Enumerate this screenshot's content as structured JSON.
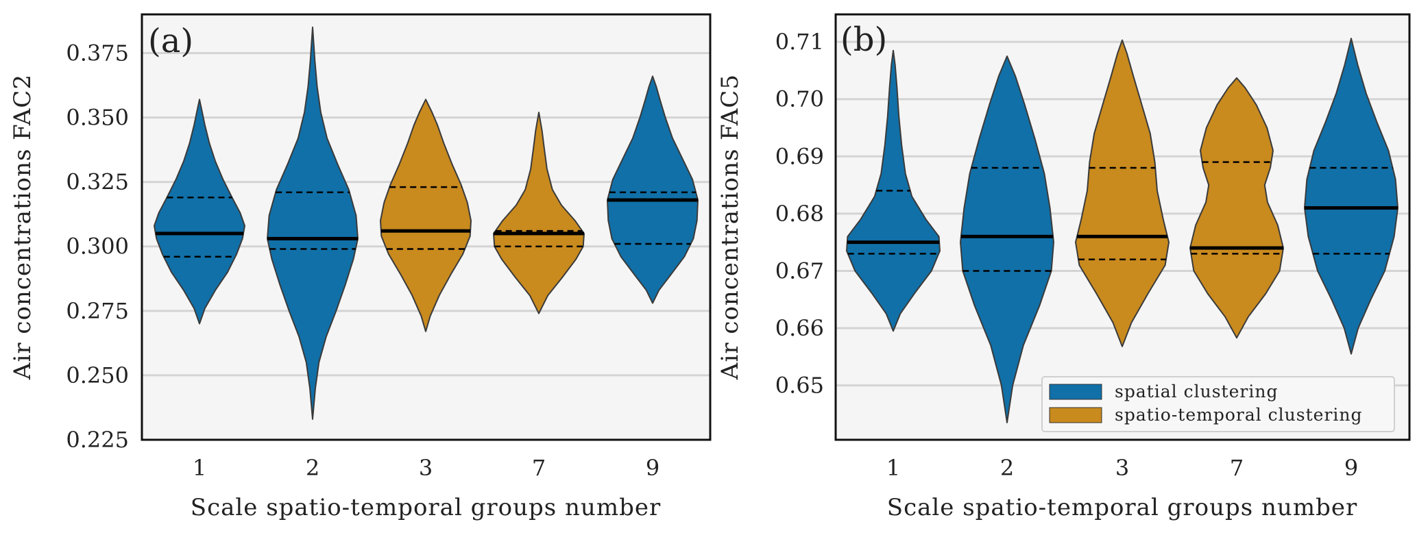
{
  "colors": {
    "spatial": "#1170a8",
    "spatio_temporal": "#c98a1e",
    "panel_bg": "#f5f5f5",
    "grid": "#d4d4d4",
    "outline": "#3a3a3a"
  },
  "legend": {
    "spatial_label": "spatial clustering",
    "spatio_temporal_label": "spatio-temporal clustering"
  },
  "chart_data": [
    {
      "type": "violin",
      "panel_label": "(a)",
      "xlabel": "Scale spatio-temporal groups number",
      "ylabel": "Air concentrations FAC2",
      "ylim": [
        0.225,
        0.39
      ],
      "yticks": [
        0.225,
        0.25,
        0.275,
        0.3,
        0.325,
        0.35,
        0.375
      ],
      "ytick_labels": [
        "0.225",
        "0.250",
        "0.275",
        "0.300",
        "0.325",
        "0.350",
        "0.375"
      ],
      "grid": true,
      "categories": [
        "1",
        "2",
        "3",
        "7",
        "9"
      ],
      "series_type": [
        "spatial",
        "spatial",
        "spatio_temporal",
        "spatio_temporal",
        "spatial"
      ],
      "violins": [
        {
          "category": "1",
          "min": 0.27,
          "max": 0.357,
          "q1": 0.296,
          "median": 0.305,
          "q3": 0.319,
          "profile": [
            [
              0.27,
              0.0
            ],
            [
              0.276,
              0.12
            ],
            [
              0.283,
              0.35
            ],
            [
              0.29,
              0.62
            ],
            [
              0.297,
              0.82
            ],
            [
              0.303,
              0.95
            ],
            [
              0.308,
              1.0
            ],
            [
              0.313,
              0.9
            ],
            [
              0.319,
              0.72
            ],
            [
              0.326,
              0.52
            ],
            [
              0.333,
              0.35
            ],
            [
              0.34,
              0.22
            ],
            [
              0.347,
              0.12
            ],
            [
              0.352,
              0.06
            ],
            [
              0.357,
              0.0
            ]
          ]
        },
        {
          "category": "2",
          "min": 0.233,
          "max": 0.385,
          "q1": 0.299,
          "median": 0.303,
          "q3": 0.321,
          "profile": [
            [
              0.233,
              0.0
            ],
            [
              0.245,
              0.06
            ],
            [
              0.255,
              0.14
            ],
            [
              0.265,
              0.3
            ],
            [
              0.275,
              0.52
            ],
            [
              0.285,
              0.72
            ],
            [
              0.295,
              0.9
            ],
            [
              0.303,
              1.0
            ],
            [
              0.312,
              0.96
            ],
            [
              0.322,
              0.8
            ],
            [
              0.332,
              0.55
            ],
            [
              0.342,
              0.32
            ],
            [
              0.352,
              0.18
            ],
            [
              0.362,
              0.1
            ],
            [
              0.372,
              0.05
            ],
            [
              0.385,
              0.0
            ]
          ]
        },
        {
          "category": "3",
          "min": 0.267,
          "max": 0.357,
          "q1": 0.299,
          "median": 0.306,
          "q3": 0.323,
          "profile": [
            [
              0.267,
              0.0
            ],
            [
              0.273,
              0.1
            ],
            [
              0.281,
              0.3
            ],
            [
              0.289,
              0.55
            ],
            [
              0.297,
              0.82
            ],
            [
              0.304,
              0.98
            ],
            [
              0.31,
              1.0
            ],
            [
              0.317,
              0.92
            ],
            [
              0.324,
              0.78
            ],
            [
              0.332,
              0.58
            ],
            [
              0.34,
              0.4
            ],
            [
              0.347,
              0.26
            ],
            [
              0.352,
              0.14
            ],
            [
              0.357,
              0.0
            ]
          ]
        },
        {
          "category": "7",
          "min": 0.274,
          "max": 0.352,
          "q1": 0.3,
          "median": 0.305,
          "q3": 0.306,
          "profile": [
            [
              0.274,
              0.0
            ],
            [
              0.281,
              0.2
            ],
            [
              0.288,
              0.52
            ],
            [
              0.295,
              0.82
            ],
            [
              0.3,
              0.98
            ],
            [
              0.305,
              1.0
            ],
            [
              0.31,
              0.8
            ],
            [
              0.316,
              0.5
            ],
            [
              0.322,
              0.3
            ],
            [
              0.33,
              0.18
            ],
            [
              0.338,
              0.12
            ],
            [
              0.345,
              0.07
            ],
            [
              0.352,
              0.0
            ]
          ]
        },
        {
          "category": "9",
          "min": 0.278,
          "max": 0.366,
          "q1": 0.301,
          "median": 0.318,
          "q3": 0.321,
          "profile": [
            [
              0.278,
              0.0
            ],
            [
              0.283,
              0.14
            ],
            [
              0.289,
              0.4
            ],
            [
              0.296,
              0.7
            ],
            [
              0.303,
              0.9
            ],
            [
              0.31,
              0.98
            ],
            [
              0.318,
              1.0
            ],
            [
              0.326,
              0.88
            ],
            [
              0.334,
              0.66
            ],
            [
              0.342,
              0.44
            ],
            [
              0.35,
              0.28
            ],
            [
              0.357,
              0.16
            ],
            [
              0.362,
              0.08
            ],
            [
              0.366,
              0.0
            ]
          ]
        }
      ]
    },
    {
      "type": "violin",
      "panel_label": "(b)",
      "xlabel": "Scale spatio-temporal groups number",
      "ylabel": "Air concentrations FAC5",
      "ylim": [
        0.6405,
        0.7148
      ],
      "yticks": [
        0.65,
        0.66,
        0.67,
        0.68,
        0.69,
        0.7,
        0.71
      ],
      "ytick_labels": [
        "0.65",
        "0.66",
        "0.67",
        "0.68",
        "0.69",
        "0.70",
        "0.71"
      ],
      "grid": true,
      "categories": [
        "1",
        "2",
        "3",
        "7",
        "9"
      ],
      "series_type": [
        "spatial",
        "spatial",
        "spatio_temporal",
        "spatio_temporal",
        "spatial"
      ],
      "legend_position": "bottom-right",
      "violins": [
        {
          "category": "1",
          "min": 0.6595,
          "max": 0.7085,
          "q1": 0.673,
          "median": 0.675,
          "q3": 0.684,
          "profile": [
            [
              0.6595,
              0.0
            ],
            [
              0.6625,
              0.15
            ],
            [
              0.666,
              0.45
            ],
            [
              0.67,
              0.82
            ],
            [
              0.6735,
              1.0
            ],
            [
              0.676,
              0.98
            ],
            [
              0.679,
              0.7
            ],
            [
              0.683,
              0.4
            ],
            [
              0.687,
              0.26
            ],
            [
              0.692,
              0.18
            ],
            [
              0.697,
              0.12
            ],
            [
              0.702,
              0.08
            ],
            [
              0.706,
              0.04
            ],
            [
              0.7085,
              0.0
            ]
          ]
        },
        {
          "category": "2",
          "min": 0.6435,
          "max": 0.7075,
          "q1": 0.67,
          "median": 0.676,
          "q3": 0.688,
          "profile": [
            [
              0.6435,
              0.0
            ],
            [
              0.65,
              0.12
            ],
            [
              0.657,
              0.35
            ],
            [
              0.664,
              0.7
            ],
            [
              0.67,
              0.95
            ],
            [
              0.675,
              1.0
            ],
            [
              0.681,
              0.92
            ],
            [
              0.687,
              0.8
            ],
            [
              0.693,
              0.6
            ],
            [
              0.699,
              0.38
            ],
            [
              0.704,
              0.18
            ],
            [
              0.7075,
              0.0
            ]
          ]
        },
        {
          "category": "3",
          "min": 0.6568,
          "max": 0.7103,
          "q1": 0.672,
          "median": 0.676,
          "q3": 0.688,
          "profile": [
            [
              0.6568,
              0.0
            ],
            [
              0.661,
              0.2
            ],
            [
              0.666,
              0.55
            ],
            [
              0.671,
              0.92
            ],
            [
              0.675,
              1.0
            ],
            [
              0.679,
              0.88
            ],
            [
              0.684,
              0.75
            ],
            [
              0.689,
              0.7
            ],
            [
              0.694,
              0.6
            ],
            [
              0.699,
              0.42
            ],
            [
              0.704,
              0.24
            ],
            [
              0.708,
              0.1
            ],
            [
              0.7103,
              0.0
            ]
          ]
        },
        {
          "category": "7",
          "min": 0.6583,
          "max": 0.7037,
          "q1": 0.673,
          "median": 0.674,
          "q3": 0.689,
          "profile": [
            [
              0.6583,
              0.0
            ],
            [
              0.662,
              0.25
            ],
            [
              0.666,
              0.62
            ],
            [
              0.67,
              0.92
            ],
            [
              0.674,
              1.0
            ],
            [
              0.678,
              0.88
            ],
            [
              0.682,
              0.66
            ],
            [
              0.685,
              0.6
            ],
            [
              0.688,
              0.72
            ],
            [
              0.691,
              0.78
            ],
            [
              0.695,
              0.65
            ],
            [
              0.699,
              0.42
            ],
            [
              0.702,
              0.18
            ],
            [
              0.7037,
              0.0
            ]
          ]
        },
        {
          "category": "9",
          "min": 0.6555,
          "max": 0.7106,
          "q1": 0.673,
          "median": 0.681,
          "q3": 0.688,
          "profile": [
            [
              0.6555,
              0.0
            ],
            [
              0.66,
              0.15
            ],
            [
              0.665,
              0.42
            ],
            [
              0.67,
              0.72
            ],
            [
              0.676,
              0.92
            ],
            [
              0.681,
              1.0
            ],
            [
              0.686,
              0.95
            ],
            [
              0.691,
              0.8
            ],
            [
              0.696,
              0.55
            ],
            [
              0.701,
              0.32
            ],
            [
              0.706,
              0.14
            ],
            [
              0.7106,
              0.0
            ]
          ]
        }
      ]
    }
  ]
}
